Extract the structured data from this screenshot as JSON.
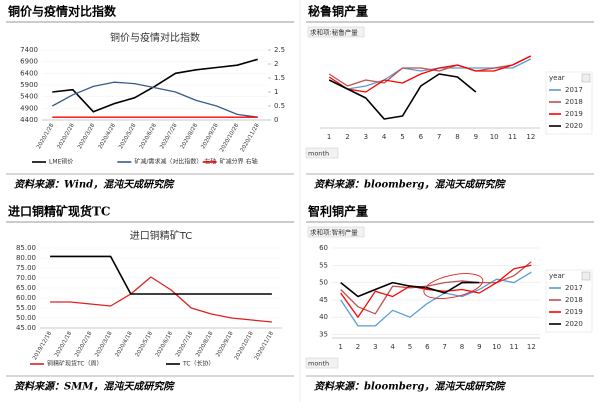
{
  "chart_data": [
    {
      "type": "line",
      "heading": "铜价与疫情对比指数",
      "title": "铜价与疫情对比指数",
      "source": "资料来源：Wind，混沌天成研究院",
      "categories": [
        "2020/1/28",
        "2020/2/28",
        "2020/3/28",
        "2020/4/28",
        "2020/5/28",
        "2020/6/28",
        "2020/7/28",
        "2020/8/28",
        "2020/9/28",
        "2020/10/28",
        "2020/11/28"
      ],
      "series": [
        {
          "name": "LME铜价",
          "color": "#000000",
          "values": [
            5600,
            5700,
            4750,
            5100,
            5350,
            5850,
            6400,
            6550,
            6650,
            6750,
            7000
          ]
        },
        {
          "name": "矿减/需求减（对比指数） 右轴",
          "color": "#3a5a8c",
          "axis": "y2",
          "values": [
            0.5,
            0.9,
            1.2,
            1.35,
            1.3,
            1.15,
            1.0,
            0.7,
            0.5,
            0.2,
            0.1
          ]
        },
        {
          "name": "矿减分界 右轴",
          "color": "#ff0000",
          "axis": "y2",
          "values": [
            0.1,
            0.1,
            0.1,
            0.1,
            0.1,
            0.1,
            0.1,
            0.1,
            0.1,
            0.1,
            0.1
          ]
        }
      ],
      "ylim": [
        4400,
        7400
      ],
      "yticks": [
        4400,
        4900,
        5400,
        5900,
        6400,
        6900,
        7400
      ],
      "y2lim": [
        0,
        2.5
      ],
      "y2ticks": [
        0,
        0.5,
        1,
        1.5,
        2,
        2.5
      ],
      "legend": "bottom"
    },
    {
      "type": "line",
      "heading": "秘鲁铜产量",
      "source": "资料来源：bloomberg，混沌天成研究院",
      "field_label": "求和项:秘鲁产量",
      "x_field": "month",
      "legend_title": "year",
      "categories": [
        "1",
        "2",
        "3",
        "4",
        "5",
        "6",
        "7",
        "8",
        "9",
        "10",
        "11",
        "12"
      ],
      "series": [
        {
          "name": "2017",
          "color": "#5b9bd5",
          "values": [
            19,
            17.5,
            18,
            19,
            21,
            20.5,
            21,
            21,
            21,
            21,
            21,
            22.5
          ]
        },
        {
          "name": "2018",
          "color": "#c0504d",
          "values": [
            20,
            18,
            19,
            18.5,
            21,
            21,
            20.5,
            21.5,
            20.5,
            21,
            21.5,
            23
          ]
        },
        {
          "name": "2019",
          "color": "#ff0000",
          "values": [
            19.5,
            17.5,
            17,
            19,
            18.5,
            20,
            21,
            21.5,
            20.5,
            20.5,
            21.5,
            23
          ]
        },
        {
          "name": "2020",
          "color": "#000000",
          "values": [
            19,
            17.5,
            16,
            12.5,
            13,
            18,
            20,
            19.5,
            17,
            null,
            null,
            null
          ]
        }
      ],
      "ylim": [
        11,
        24
      ],
      "legend": "right"
    },
    {
      "type": "line",
      "heading": "进口铜精矿现货TC",
      "title": "进口铜精矿TC",
      "source": "资料来源：SMM，混沌天成研究院",
      "categories": [
        "2019/12/18",
        "2020/1/18",
        "2020/2/18",
        "2020/3/18",
        "2020/4/18",
        "2020/5/18",
        "2020/6/18",
        "2020/7/18",
        "2020/8/18",
        "2020/9/18",
        "2020/10/18",
        "2020/11/18"
      ],
      "series": [
        {
          "name": "铜精矿现货TC（周）",
          "color": "#e02020",
          "values": [
            58,
            58,
            57,
            56,
            62,
            70.5,
            64,
            55,
            52,
            50,
            49,
            48
          ]
        },
        {
          "name": "TC（长协）",
          "color": "#000000",
          "values": [
            80.8,
            80.8,
            80.8,
            80.8,
            62,
            62,
            62,
            62,
            62,
            62,
            62,
            62
          ]
        }
      ],
      "ylim": [
        45,
        85
      ],
      "yticks": [
        {
          "value": 45,
          "label": "45.00"
        },
        {
          "value": 50,
          "label": "50.00"
        },
        {
          "value": 55,
          "label": "55.00"
        },
        {
          "value": 60,
          "label": "60.00"
        },
        {
          "value": 65,
          "label": "65.00"
        },
        {
          "value": 70,
          "label": "70.00"
        },
        {
          "value": 75,
          "label": "75.00"
        },
        {
          "value": 80,
          "label": "80.00"
        },
        {
          "value": 85,
          "label": "85.00"
        }
      ],
      "legend": "bottom"
    },
    {
      "type": "line",
      "heading": "智利铜产量",
      "source": "资料来源：bloomberg，混沌天成研究院",
      "field_label": "求和项:智利产量",
      "x_field": "month",
      "legend_title": "year",
      "categories": [
        "1",
        "2",
        "3",
        "4",
        "5",
        "6",
        "7",
        "8",
        "9",
        "10",
        "11",
        "12"
      ],
      "series": [
        {
          "name": "2017",
          "color": "#5b9bd5",
          "values": [
            45,
            37.5,
            37.5,
            42,
            40,
            44,
            47,
            46,
            48,
            51,
            50,
            53
          ]
        },
        {
          "name": "2018",
          "color": "#c0504d",
          "values": [
            48,
            43,
            41,
            49,
            48.5,
            49,
            50,
            50.5,
            50,
            50,
            52,
            56
          ]
        },
        {
          "name": "2019",
          "color": "#ff0000",
          "values": [
            47,
            40,
            47.5,
            46,
            49,
            48,
            47.5,
            48,
            47,
            50,
            54,
            55
          ]
        },
        {
          "name": "2020",
          "color": "#000000",
          "values": [
            50,
            46,
            48,
            50,
            49,
            48.5,
            47,
            50,
            50,
            null,
            null,
            null
          ]
        }
      ],
      "ylim": [
        34,
        60
      ],
      "yticks": [
        35,
        40,
        45,
        50,
        55,
        60
      ],
      "legend": "right"
    }
  ]
}
